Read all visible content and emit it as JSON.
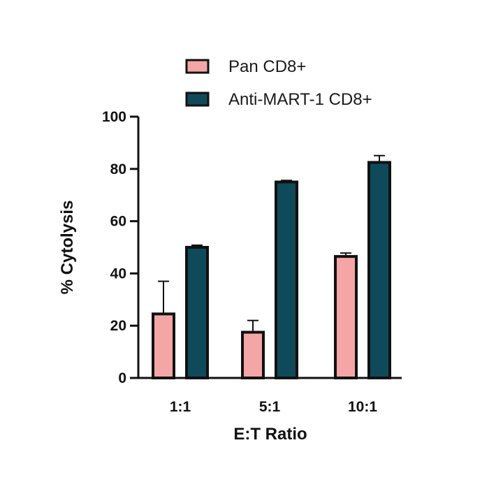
{
  "chart_data": {
    "type": "bar",
    "title": "",
    "xlabel": "E:T Ratio",
    "ylabel": "% Cytolysis",
    "categories": [
      "1:1",
      "5:1",
      "10:1"
    ],
    "ylim": [
      0,
      100
    ],
    "yticks": [
      0,
      20,
      40,
      60,
      80,
      100
    ],
    "legend_position": "top",
    "series": [
      {
        "name": "Pan CD8+",
        "color": "#f4a6a6",
        "values": [
          24.5,
          17.5,
          46.5
        ],
        "errors": [
          12.5,
          4.5,
          1.3
        ]
      },
      {
        "name": "Anti-MART-1 CD8+",
        "color": "#0e4a5a",
        "values": [
          50,
          75,
          82.5
        ],
        "errors": [
          0.8,
          0.6,
          2.6
        ]
      }
    ]
  }
}
